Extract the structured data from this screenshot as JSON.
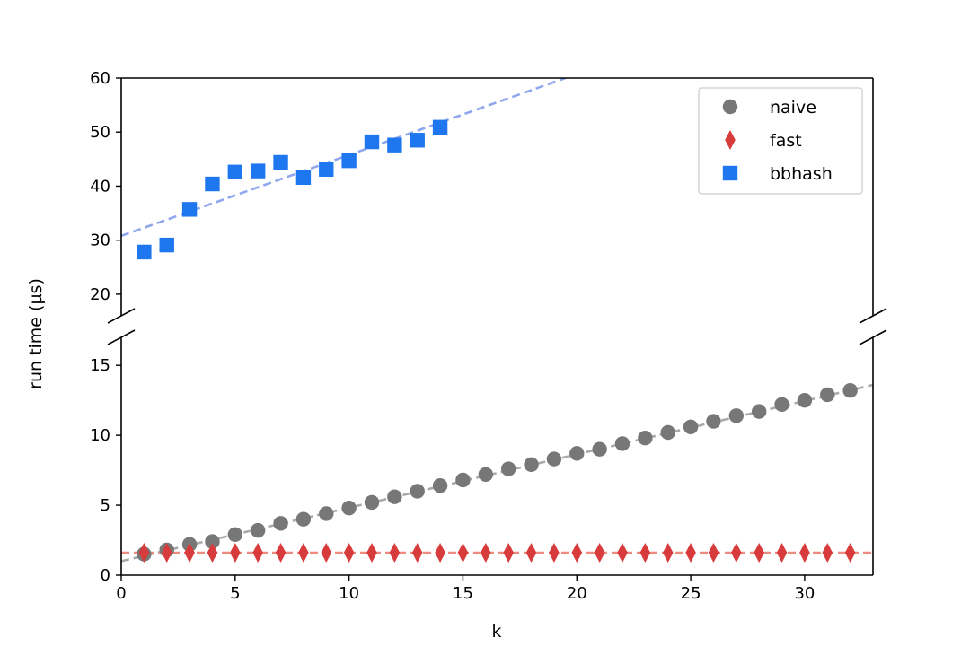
{
  "chart_data": {
    "type": "scatter",
    "xlabel": "k",
    "ylabel": "run time (µs)",
    "xlim": [
      0,
      33
    ],
    "x_ticks": [
      0,
      5,
      10,
      15,
      20,
      25,
      30
    ],
    "broken_y_axis": true,
    "upper_ylim": [
      16,
      60
    ],
    "upper_y_ticks": [
      20,
      30,
      40,
      50,
      60
    ],
    "lower_ylim": [
      0,
      17
    ],
    "lower_y_ticks": [
      0,
      5,
      10,
      15
    ],
    "grid": false,
    "legend_position": "top-right",
    "series": [
      {
        "name": "naive",
        "marker": "circle",
        "color": "#777777",
        "x": [
          1,
          2,
          3,
          4,
          5,
          6,
          7,
          8,
          9,
          10,
          11,
          12,
          13,
          14,
          15,
          16,
          17,
          18,
          19,
          20,
          21,
          22,
          23,
          24,
          25,
          26,
          27,
          28,
          29,
          30,
          31,
          32
        ],
        "y": [
          1.5,
          1.8,
          2.2,
          2.4,
          2.9,
          3.2,
          3.7,
          4.0,
          4.4,
          4.8,
          5.2,
          5.6,
          6.0,
          6.4,
          6.8,
          7.2,
          7.6,
          7.9,
          8.3,
          8.7,
          9.0,
          9.4,
          9.8,
          10.2,
          10.6,
          11.0,
          11.4,
          11.7,
          12.2,
          12.5,
          12.9,
          13.2
        ],
        "fit": {
          "color": "#aaaaaa",
          "x": [
            0,
            33
          ],
          "y": [
            1.0,
            13.6
          ]
        }
      },
      {
        "name": "fast",
        "marker": "diamond",
        "color": "#d83b3b",
        "x": [
          1,
          2,
          3,
          4,
          5,
          6,
          7,
          8,
          9,
          10,
          11,
          12,
          13,
          14,
          15,
          16,
          17,
          18,
          19,
          20,
          21,
          22,
          23,
          24,
          25,
          26,
          27,
          28,
          29,
          30,
          31,
          32
        ],
        "y": [
          1.6,
          1.6,
          1.6,
          1.6,
          1.6,
          1.6,
          1.6,
          1.6,
          1.6,
          1.6,
          1.6,
          1.6,
          1.6,
          1.6,
          1.6,
          1.6,
          1.6,
          1.6,
          1.6,
          1.6,
          1.6,
          1.6,
          1.6,
          1.6,
          1.6,
          1.6,
          1.6,
          1.6,
          1.6,
          1.6,
          1.6,
          1.6
        ],
        "fit": {
          "color": "#ee8a80",
          "x": [
            0,
            33
          ],
          "y": [
            1.6,
            1.6
          ]
        }
      },
      {
        "name": "bbhash",
        "marker": "square",
        "color": "#1f77f0",
        "x": [
          1,
          2,
          3,
          4,
          5,
          6,
          7,
          8,
          9,
          10,
          11,
          12,
          13,
          14
        ],
        "y": [
          27.8,
          29.1,
          35.7,
          40.4,
          42.6,
          42.8,
          44.4,
          41.6,
          43.1,
          44.7,
          48.2,
          47.6,
          48.5,
          50.9
        ],
        "fit": {
          "color": "#8ea6ee",
          "x": [
            0,
            19.5
          ],
          "y": [
            30.8,
            60
          ]
        }
      }
    ]
  }
}
